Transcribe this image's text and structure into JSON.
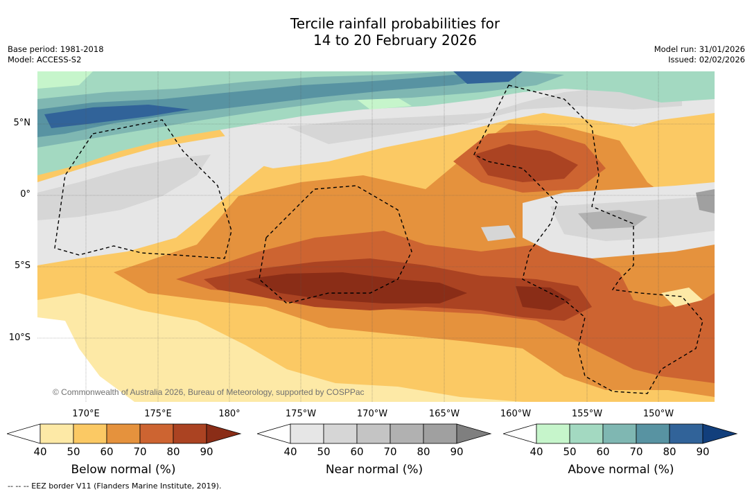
{
  "title": {
    "line1": "Tercile rainfall probabilities for",
    "line2": "14 to 20 February 2026"
  },
  "meta": {
    "base_period": "Base period: 1981-2018",
    "model": "Model: ACCESS-S2",
    "model_run": "Model run: 31/01/2026",
    "issued": "Issued: 02/02/2026"
  },
  "map": {
    "lat_labels": [
      "5°N",
      "0°",
      "5°S",
      "10°S"
    ],
    "lon_labels": [
      "170°E",
      "175°E",
      "180°",
      "175°W",
      "170°W",
      "165°W",
      "160°W",
      "155°W",
      "150°W"
    ],
    "copyright": "© Commonwealth of Australia 2026, Bureau of Meteorology, supported by COSPPac"
  },
  "colorbars": [
    {
      "label": "Below normal (%)",
      "ticks": [
        "40",
        "50",
        "60",
        "70",
        "80",
        "90"
      ],
      "colors": [
        "#ffffff",
        "#fde9a6",
        "#fbc964",
        "#e5923d",
        "#cd6431",
        "#ab4322",
        "#8a2d17"
      ]
    },
    {
      "label": "Near normal (%)",
      "ticks": [
        "40",
        "50",
        "60",
        "70",
        "80",
        "90"
      ],
      "colors": [
        "#ffffff",
        "#e6e6e6",
        "#d6d6d6",
        "#c4c4c4",
        "#b1b1b1",
        "#a0a0a0",
        "#7f7f7f"
      ]
    },
    {
      "label": "Above normal (%)",
      "ticks": [
        "40",
        "50",
        "60",
        "70",
        "80",
        "90"
      ],
      "colors": [
        "#ffffff",
        "#c6f5cb",
        "#a3d9c1",
        "#7fb7b2",
        "#5893a2",
        "#316399",
        "#123f7c"
      ]
    }
  ],
  "footnote": "--  --  -- EEZ border V11 (Flanders Marine Institute, 2019)."
}
